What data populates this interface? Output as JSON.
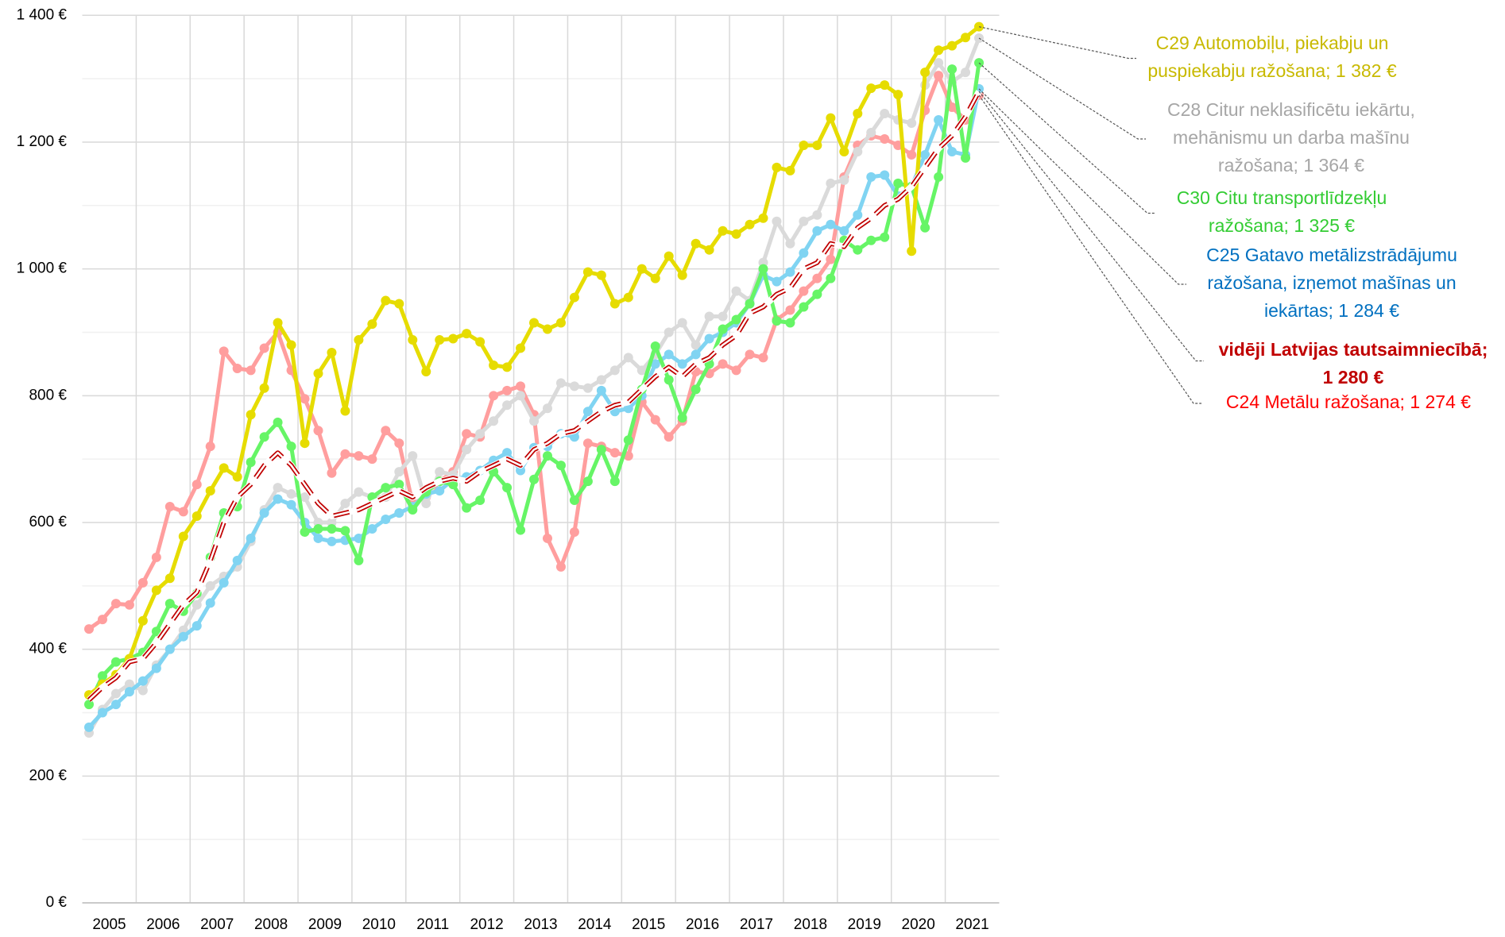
{
  "chart_data": {
    "type": "line",
    "categories": [
      "2005",
      null,
      null,
      null,
      "2006",
      null,
      null,
      null,
      "2007",
      null,
      null,
      null,
      "2008",
      null,
      null,
      null,
      "2009",
      null,
      null,
      null,
      "2010",
      null,
      null,
      null,
      "2011",
      null,
      null,
      null,
      "2012",
      null,
      null,
      null,
      "2013",
      null,
      null,
      null,
      "2014",
      null,
      null,
      null,
      "2015",
      null,
      null,
      null,
      "2016",
      null,
      null,
      null,
      "2017",
      null,
      null,
      null,
      "2018",
      null,
      null,
      null,
      "2019",
      null,
      null,
      null,
      "2020",
      null,
      null,
      null,
      "2021",
      null,
      null
    ],
    "ylim": [
      0,
      1400
    ],
    "yticks": [
      {
        "value": 0,
        "label": "0 €"
      },
      {
        "value": 200,
        "label": "200 €"
      },
      {
        "value": 400,
        "label": "400 €"
      },
      {
        "value": 600,
        "label": "600 €"
      },
      {
        "value": 800,
        "label": "800 €"
      },
      {
        "value": 1000,
        "label": "1 000 €"
      },
      {
        "value": 1200,
        "label": "1 200 €"
      },
      {
        "value": 1400,
        "label": "1 400 €"
      }
    ],
    "minor_yticks": [
      100,
      300,
      500,
      700,
      900,
      1100,
      1300
    ],
    "grid": true,
    "series": [
      {
        "name": "C24 Metālu ražošana",
        "color": "#ff9e9e",
        "label_color": "#ff0000",
        "label_lines": [
          "C24 Metālu ražošana; 1 274 €"
        ],
        "markers": true,
        "values": [
          432,
          447,
          472,
          470,
          505,
          545,
          625,
          617,
          660,
          720,
          870,
          843,
          840,
          875,
          900,
          840,
          795,
          745,
          678,
          708,
          705,
          700,
          745,
          725,
          630,
          640,
          665,
          680,
          740,
          735,
          800,
          808,
          815,
          770,
          575,
          530,
          585,
          725,
          720,
          710,
          705,
          790,
          762,
          735,
          760,
          838,
          835,
          850,
          840,
          865,
          860,
          920,
          935,
          965,
          985,
          1015,
          1145,
          1195,
          1210,
          1205,
          1195,
          1180,
          1250,
          1305,
          1255,
          1235,
          1274
        ]
      },
      {
        "name": "C28 Citur neklasificētu iekārtu, mehānismu un darba mašīnu ražošana",
        "color": "#dadada",
        "label_color": "#a6a6a6",
        "label_lines": [
          "C28 Citur neklasificētu iekārtu,",
          "mehānismu un darba mašīnu",
          "ražošana; 1 364 €"
        ],
        "markers": true,
        "values": [
          268,
          305,
          330,
          345,
          335,
          375,
          400,
          430,
          470,
          500,
          515,
          530,
          570,
          620,
          655,
          645,
          640,
          600,
          600,
          630,
          648,
          640,
          640,
          680,
          705,
          630,
          680,
          675,
          715,
          740,
          760,
          785,
          800,
          760,
          780,
          820,
          815,
          812,
          825,
          840,
          860,
          840,
          865,
          900,
          915,
          880,
          925,
          925,
          965,
          950,
          1010,
          1075,
          1040,
          1075,
          1085,
          1135,
          1140,
          1185,
          1215,
          1245,
          1235,
          1230,
          1290,
          1325,
          1295,
          1310,
          1364
        ]
      },
      {
        "name": "C25 Gatavo metālizstrādājumu ražošana, izņemot mašīnas un iekārtas",
        "color": "#80d4f2",
        "label_color": "#0070c0",
        "label_lines": [
          "C25 Gatavo metālizstrādājumu",
          "ražošana, izņemot mašīnas un",
          "iekārtas; 1 284 €"
        ],
        "markers": true,
        "values": [
          277,
          300,
          313,
          333,
          350,
          370,
          400,
          420,
          437,
          473,
          505,
          540,
          575,
          615,
          637,
          628,
          600,
          575,
          570,
          572,
          575,
          590,
          605,
          615,
          625,
          645,
          650,
          668,
          672,
          682,
          698,
          710,
          682,
          718,
          720,
          740,
          735,
          775,
          808,
          775,
          780,
          800,
          850,
          865,
          850,
          865,
          890,
          900,
          915,
          945,
          990,
          980,
          995,
          1025,
          1060,
          1070,
          1060,
          1085,
          1145,
          1148,
          1115,
          1130,
          1180,
          1235,
          1185,
          1180,
          1284
        ]
      },
      {
        "name": "C30 Citu transportlīdzekļu ražošana",
        "color": "#66f566",
        "label_color": "#33cc33",
        "label_lines": [
          "C30 Citu transportlīdzekļu",
          "ražošana; 1 325 €"
        ],
        "markers": true,
        "values": [
          313,
          358,
          380,
          385,
          395,
          428,
          472,
          460,
          488,
          545,
          615,
          625,
          695,
          735,
          758,
          720,
          585,
          590,
          590,
          587,
          540,
          640,
          655,
          660,
          620,
          648,
          665,
          660,
          623,
          635,
          680,
          655,
          588,
          668,
          705,
          690,
          635,
          665,
          715,
          665,
          730,
          810,
          878,
          825,
          765,
          810,
          850,
          905,
          920,
          945,
          1000,
          918,
          915,
          940,
          960,
          985,
          1045,
          1030,
          1045,
          1050,
          1135,
          1130,
          1065,
          1145,
          1315,
          1175,
          1325
        ]
      },
      {
        "name": "C29 Automobiļu, piekabju un puspiekabju ražošana",
        "color": "#e6dc00",
        "label_color": "#c8b900",
        "label_lines": [
          "C29 Automobiļu, piekabju un",
          "puspiekabju ražošana; 1 382 €"
        ],
        "markers": true,
        "values": [
          328,
          345,
          360,
          385,
          445,
          493,
          512,
          578,
          610,
          650,
          686,
          672,
          770,
          812,
          915,
          880,
          725,
          835,
          868,
          776,
          888,
          913,
          950,
          945,
          888,
          838,
          888,
          890,
          898,
          885,
          848,
          845,
          875,
          915,
          905,
          915,
          955,
          995,
          990,
          945,
          955,
          1000,
          985,
          1020,
          990,
          1040,
          1030,
          1060,
          1055,
          1070,
          1080,
          1160,
          1155,
          1195,
          1195,
          1238,
          1185,
          1245,
          1285,
          1290,
          1275,
          1028,
          1310,
          1345,
          1352,
          1365,
          1382
        ]
      },
      {
        "name": "vidēji Latvijas tautsaimniecībā",
        "color": "#c00000",
        "label_color": "#c00000",
        "label_bold": true,
        "label_lines": [
          "vidēji Latvijas tautsaimniecībā;",
          "1 280 €"
        ],
        "markers": false,
        "dashed": true,
        "values": [
          320,
          340,
          355,
          380,
          385,
          410,
          440,
          470,
          490,
          540,
          600,
          640,
          660,
          690,
          710,
          690,
          660,
          630,
          610,
          615,
          620,
          630,
          640,
          650,
          640,
          655,
          665,
          670,
          665,
          680,
          690,
          700,
          690,
          715,
          725,
          740,
          745,
          760,
          775,
          785,
          790,
          810,
          830,
          845,
          830,
          850,
          860,
          880,
          895,
          930,
          940,
          960,
          970,
          1000,
          1010,
          1040,
          1035,
          1065,
          1080,
          1100,
          1110,
          1130,
          1160,
          1190,
          1210,
          1240,
          1280
        ]
      }
    ]
  }
}
